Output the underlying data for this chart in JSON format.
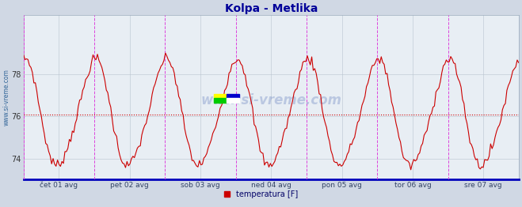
{
  "title": "Kolpa - Metlika",
  "title_color": "#000099",
  "title_fontsize": 10,
  "ylabel_text": "www.si-vreme.com",
  "ylabel_color": "#336699",
  "background_color": "#d0d8e4",
  "plot_bg_color": "#e8eef4",
  "line_color": "#cc0000",
  "line_width": 0.8,
  "ylim_min": 73.0,
  "ylim_max": 80.8,
  "yticks": [
    74,
    76,
    78
  ],
  "mean_line_y": 76.1,
  "mean_line_color": "#cc0000",
  "grid_color": "#b8c4d0",
  "vline_color": "#dd44dd",
  "bottom_line_color": "#0000bb",
  "x_tick_labels": [
    "čet 01 avg",
    "pet 02 avg",
    "sob 03 avg",
    "ned 04 avg",
    "pon 05 avg",
    "tor 06 avg",
    "sre 07 avg"
  ],
  "x_tick_positions": [
    0.5,
    1.5,
    2.5,
    3.5,
    4.5,
    5.5,
    6.5
  ],
  "vline_positions": [
    0.0,
    1.0,
    2.0,
    3.0,
    4.0,
    5.0,
    6.0,
    7.0
  ],
  "legend_label": "temperatura [F]",
  "legend_color": "#cc0000",
  "watermark_text": "www.si-vreme.com",
  "watermark_color": "#3355aa",
  "watermark_alpha": 0.25,
  "n_points": 336,
  "base_temp": 76.1,
  "amplitude": 2.5
}
